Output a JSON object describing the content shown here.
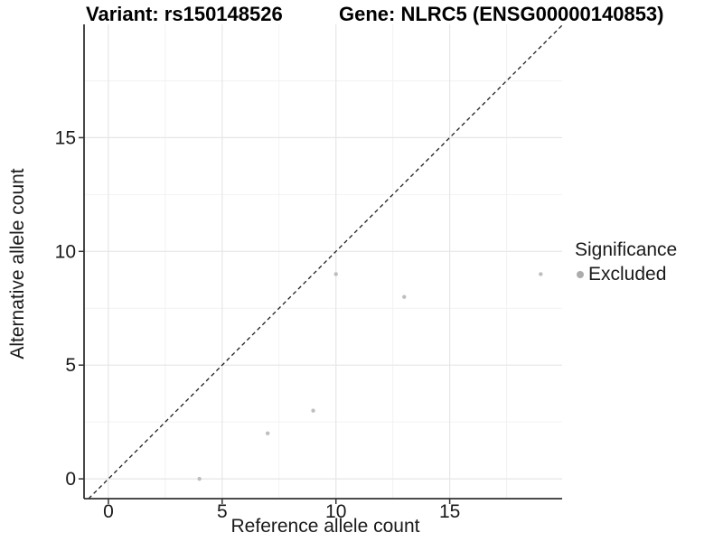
{
  "chart_data": {
    "type": "scatter",
    "title_variant": "Variant: rs150148526",
    "title_gene": "Gene: NLRC5 (ENSG00000140853)",
    "xlabel": "Reference allele count",
    "ylabel": "Alternative allele count",
    "xlim": [
      -1.07,
      19.94
    ],
    "ylim": [
      -0.87,
      19.98
    ],
    "x_ticks": [
      0,
      5,
      10,
      15
    ],
    "y_ticks": [
      0,
      5,
      10,
      15
    ],
    "x_minor_ticks": [
      2.5,
      7.5,
      12.5,
      17.5
    ],
    "y_minor_ticks": [
      2.5,
      7.5,
      12.5,
      17.5
    ],
    "points": [
      {
        "x": 4,
        "y": 0
      },
      {
        "x": 7,
        "y": 2
      },
      {
        "x": 9,
        "y": 3
      },
      {
        "x": 10,
        "y": 9
      },
      {
        "x": 13,
        "y": 8
      },
      {
        "x": 19,
        "y": 9
      }
    ],
    "point_color": "#bebebe",
    "identity_line": {
      "style": "dashed",
      "equation": "y = x",
      "color": "#1c1c1c"
    },
    "colors": {
      "grid_major": "#e6e6e6",
      "grid_minor": "#f2f2f2",
      "axis": "#333333",
      "tick_label": "#1a1a1a",
      "background": "#ffffff"
    },
    "legend": {
      "title": "Significance",
      "position": "right",
      "entries": [
        {
          "label": "Excluded",
          "color": "#acacac"
        }
      ]
    },
    "grid": true
  }
}
